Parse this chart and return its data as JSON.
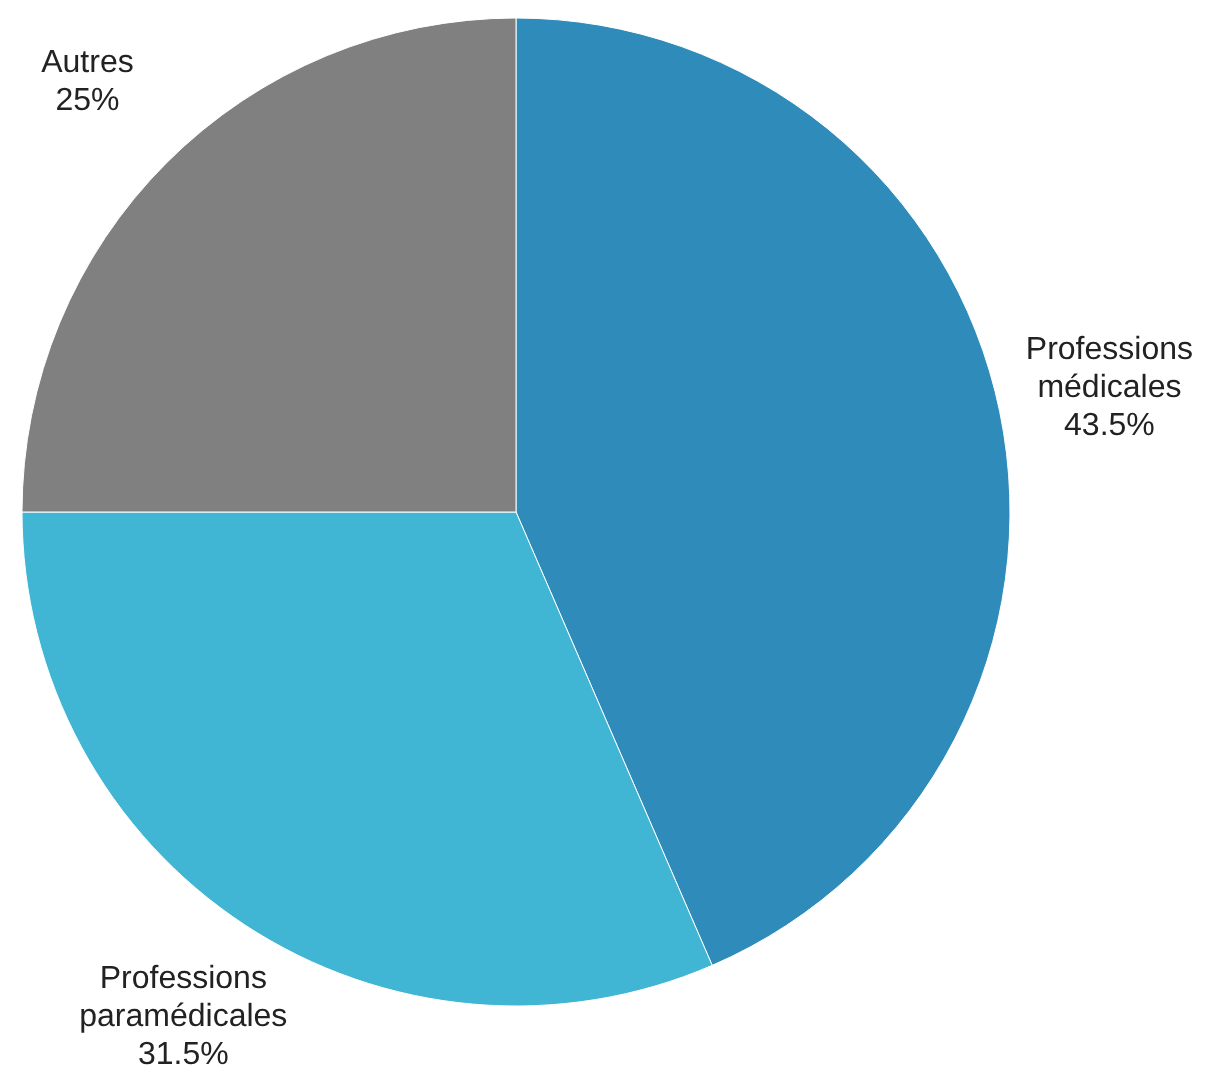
{
  "chart_data": {
    "type": "pie",
    "categories": [
      "Professions médicales",
      "Professions paramédicales",
      "Autres"
    ],
    "values": [
      43.5,
      31.5,
      25
    ],
    "colors": [
      "#2e8bba",
      "#41b6d4",
      "#808080"
    ],
    "value_labels": [
      "43.5%",
      "31.5%",
      "25%"
    ]
  }
}
